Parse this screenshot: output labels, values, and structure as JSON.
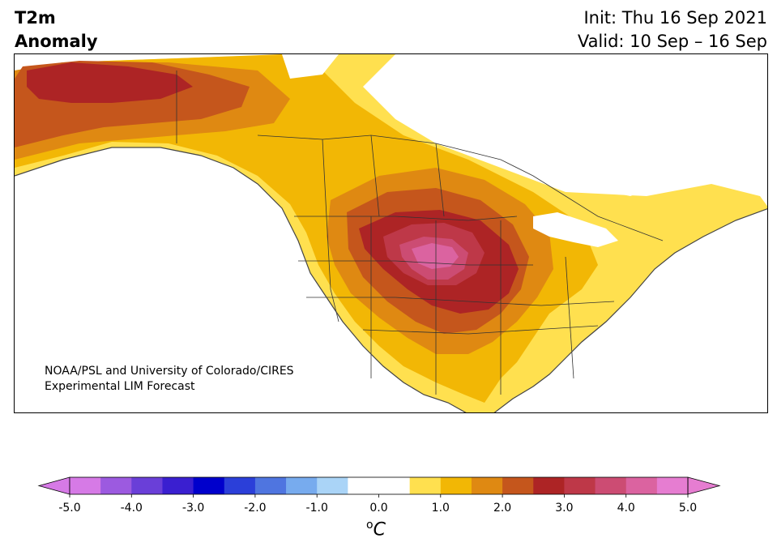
{
  "header": {
    "title_line1": "T2m",
    "title_line2": "Anomaly",
    "init": "Init: Thu 16 Sep 2021",
    "valid": "Valid: 10 Sep – 16 Sep"
  },
  "credit": {
    "line1": "NOAA/PSL and University of Colorado/CIRES",
    "line2": "Experimental LIM Forecast"
  },
  "colorbar": {
    "ticks": [
      "-5.0",
      "-4.0",
      "-3.0",
      "-2.0",
      "-1.0",
      "0.0",
      "1.0",
      "2.0",
      "3.0",
      "4.0",
      "5.0"
    ],
    "colors": [
      "#d67ae6",
      "#9c5ae0",
      "#6a3fd8",
      "#3a1fd0",
      "#0000cc",
      "#2b3fd9",
      "#4f75e0",
      "#77abee",
      "#aad4f7",
      "#ffffff",
      "#ffffff",
      "#ffe04f",
      "#f2b705",
      "#df8912",
      "#c5561c",
      "#ad2425",
      "#be3848",
      "#cc4c73",
      "#db63a0",
      "#e67dd1"
    ],
    "under_color": "#d67ae6",
    "over_color": "#e67dd1",
    "units": "C",
    "units_sup": "o"
  },
  "map": {
    "variable": "T2m anomaly",
    "region": "North America",
    "land_color": "#ffffff",
    "border_color": "#333333"
  }
}
